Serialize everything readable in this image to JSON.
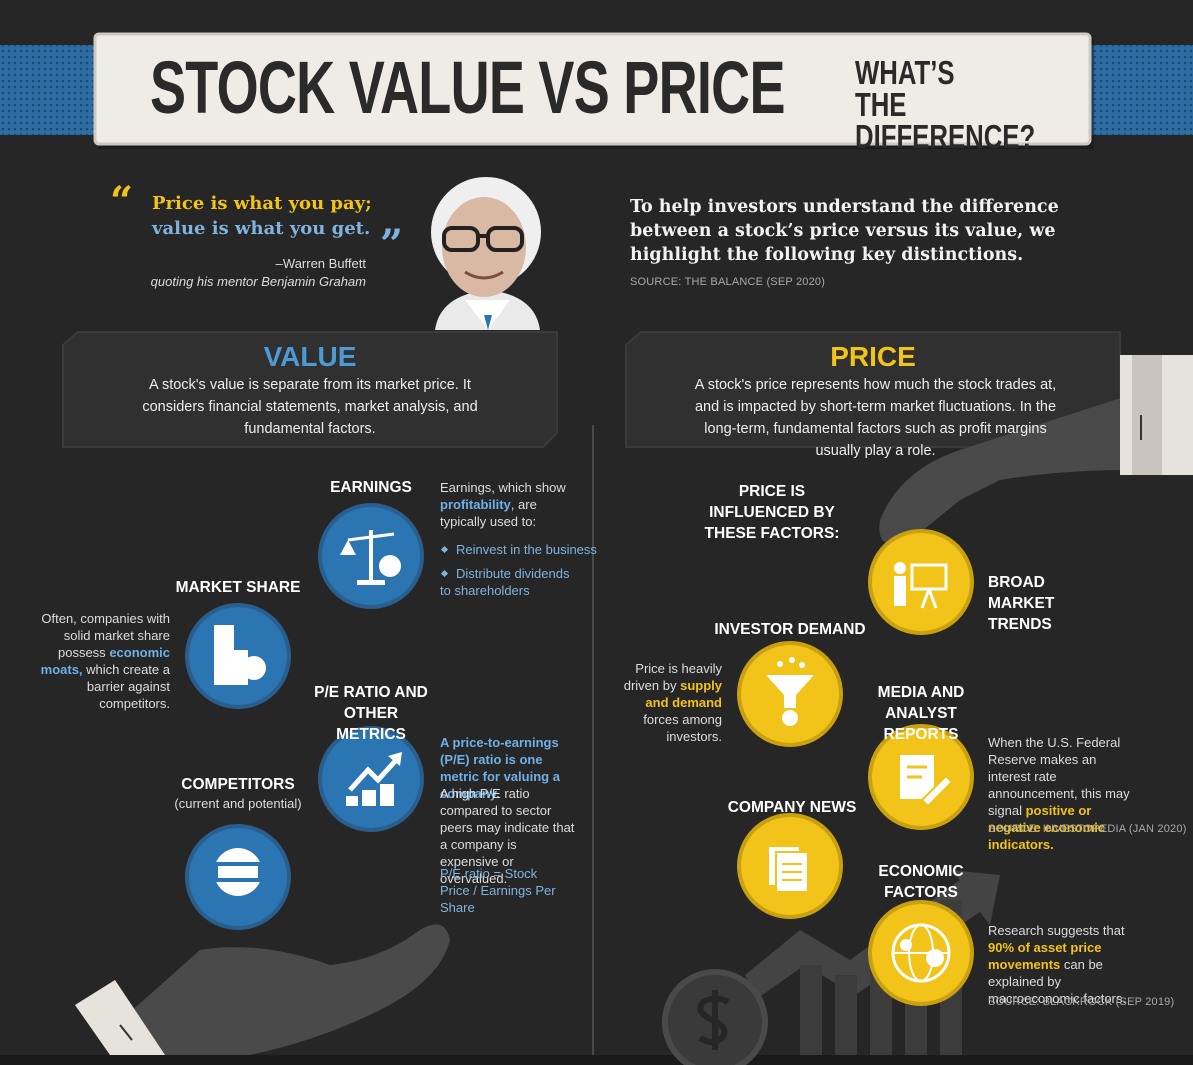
{
  "header": {
    "title": "STOCK VALUE VS PRICE",
    "subtitle": "WHAT’S THE DIFFERENCE?"
  },
  "quote": {
    "lines": [
      "Price is what you pay;",
      "value is what you get."
    ],
    "author": "–Warren Buffett",
    "note": "quoting his mentor Benjamin Graham"
  },
  "intro": {
    "text": "To help investors understand the difference between a stock’s price versus its value, we highlight the following key distinctions.",
    "source": "SOURCE: THE BALANCE (SEP 2020)"
  },
  "value": {
    "heading": "VALUE",
    "description": "A stock's value is separate from its market price. It considers financial statements, market analysis, and fundamental factors.",
    "earnings": {
      "label": "EARNINGS",
      "description": [
        "Earnings, which show",
        "profitability",
        ", are typically used to:"
      ],
      "bullets": [
        "Reinvest in the business",
        "Distribute dividends to shareholders"
      ]
    },
    "market_share": {
      "label": "MARKET SHARE",
      "description": [
        "Often, companies with solid market share possess",
        "economic moats,",
        "which create a barrier against competitors."
      ]
    },
    "pe_ratio": {
      "label": "P/E RATIO AND OTHER METRICS",
      "highlight": "A price-to-earnings (P/E) ratio is one metric for valuing a company.",
      "description": "A high P/E ratio compared to sector peers may indicate that a company is expensive or overvalued.",
      "formula": "P/E ratio = Stock Price / Earnings Per Share"
    },
    "competitors": {
      "label": "COMPETITORS",
      "sublabel": "(current and potential)"
    }
  },
  "price": {
    "heading": "PRICE",
    "description": "A stock's price represents how much the stock trades at, and is impacted by short-term market fluctuations. In the long-term, fundamental factors such as profit margins usually play a role.",
    "factors_label": "PRICE IS INFLUENCED BY THESE FACTORS:",
    "broad_market": {
      "label": "BROAD MARKET TRENDS"
    },
    "investor_demand": {
      "label": "INVESTOR DEMAND",
      "description": [
        "Price is heavily driven by",
        "supply and demand",
        "forces among investors."
      ]
    },
    "media": {
      "label": "MEDIA AND ANALYST REPORTS",
      "description": [
        "When the U.S. Federal Reserve makes an interest rate announcement, this may signal",
        "positive or negative economic indicators."
      ],
      "source": "SOURCE: INVESTOPEDIA (JAN 2020)"
    },
    "company_news": {
      "label": "COMPANY NEWS"
    },
    "economic": {
      "label": "ECONOMIC FACTORS",
      "description": [
        "Research suggests that",
        "90% of asset price movements",
        "can be explained by macroeconomic factors."
      ],
      "source": "SOURCE: BLACKROCK (SEP 2019)"
    }
  }
}
